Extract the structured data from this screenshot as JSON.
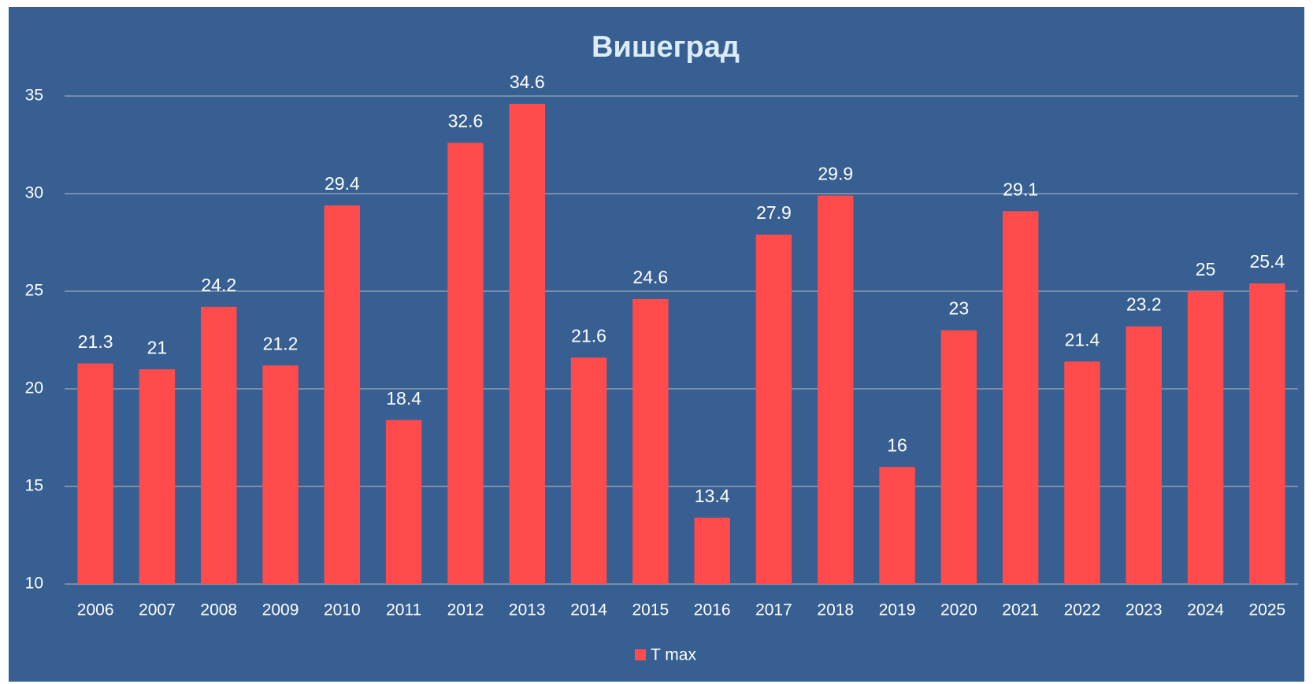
{
  "chart_data": {
    "type": "bar",
    "title": "Вишеград",
    "categories": [
      "2006",
      "2007",
      "2008",
      "2009",
      "2010",
      "2011",
      "2012",
      "2013",
      "2014",
      "2015",
      "2016",
      "2017",
      "2018",
      "2019",
      "2020",
      "2021",
      "2022",
      "2023",
      "2024",
      "2025"
    ],
    "series": [
      {
        "name": "T max",
        "color": "#ff4b4b",
        "values": [
          21.3,
          21,
          24.2,
          21.2,
          29.4,
          18.4,
          32.6,
          34.6,
          21.6,
          24.6,
          13.4,
          27.9,
          29.9,
          16,
          23,
          29.1,
          21.4,
          23.2,
          25,
          25.4
        ]
      }
    ],
    "ylim": [
      10,
      35
    ],
    "yticks": [
      10,
      15,
      20,
      25,
      30,
      35
    ],
    "grid": true,
    "legend": "bottom"
  }
}
